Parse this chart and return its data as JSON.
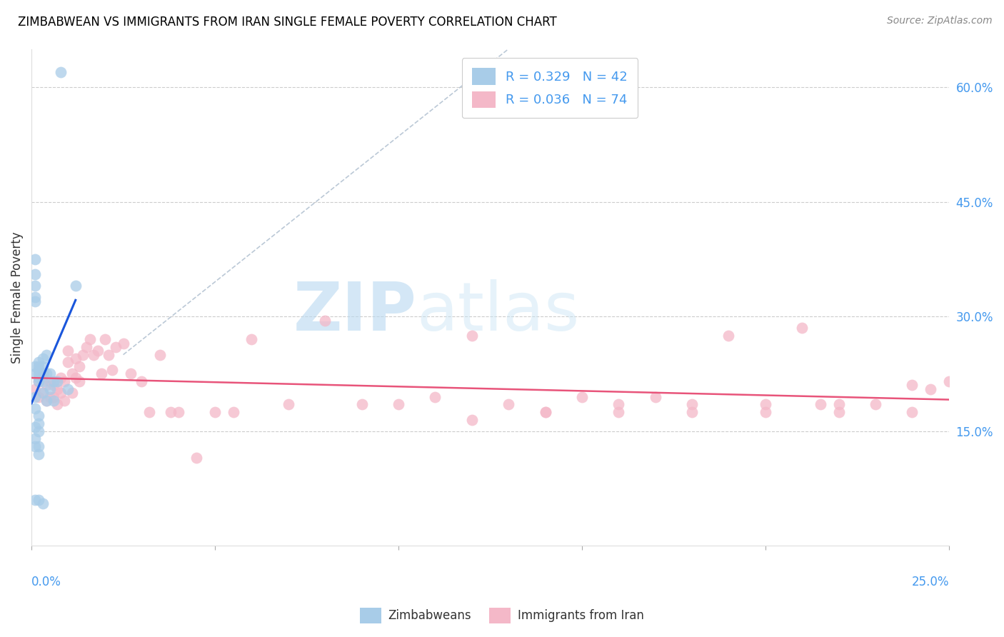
{
  "title": "ZIMBABWEAN VS IMMIGRANTS FROM IRAN SINGLE FEMALE POVERTY CORRELATION CHART",
  "source": "Source: ZipAtlas.com",
  "ylabel": "Single Female Poverty",
  "ylabel_right_ticks": [
    "60.0%",
    "45.0%",
    "30.0%",
    "15.0%"
  ],
  "ylabel_right_values": [
    0.6,
    0.45,
    0.3,
    0.15
  ],
  "xmin": 0.0,
  "xmax": 0.25,
  "ymin": 0.0,
  "ymax": 0.65,
  "color_zim": "#a8cce8",
  "color_iran": "#f4b8c8",
  "color_zim_line": "#1a56db",
  "color_iran_line": "#e8547a",
  "watermark_zip": "ZIP",
  "watermark_atlas": "atlas",
  "zim_scatter_x": [
    0.001,
    0.001,
    0.001,
    0.001,
    0.001,
    0.001,
    0.001,
    0.001,
    0.002,
    0.002,
    0.002,
    0.002,
    0.002,
    0.002,
    0.002,
    0.003,
    0.003,
    0.003,
    0.003,
    0.003,
    0.004,
    0.004,
    0.004,
    0.005,
    0.005,
    0.006,
    0.006,
    0.007,
    0.008,
    0.01,
    0.012,
    0.001,
    0.001,
    0.002,
    0.002,
    0.001,
    0.002,
    0.001,
    0.001,
    0.002,
    0.002,
    0.003
  ],
  "zim_scatter_y": [
    0.375,
    0.355,
    0.34,
    0.325,
    0.32,
    0.235,
    0.225,
    0.06,
    0.24,
    0.235,
    0.23,
    0.225,
    0.22,
    0.215,
    0.13,
    0.245,
    0.235,
    0.225,
    0.215,
    0.2,
    0.25,
    0.225,
    0.19,
    0.225,
    0.205,
    0.215,
    0.19,
    0.215,
    0.62,
    0.205,
    0.34,
    0.195,
    0.18,
    0.17,
    0.16,
    0.155,
    0.15,
    0.14,
    0.13,
    0.12,
    0.06,
    0.055
  ],
  "iran_scatter_x": [
    0.001,
    0.002,
    0.002,
    0.003,
    0.003,
    0.004,
    0.004,
    0.005,
    0.005,
    0.006,
    0.006,
    0.007,
    0.007,
    0.008,
    0.008,
    0.009,
    0.009,
    0.01,
    0.01,
    0.011,
    0.011,
    0.012,
    0.012,
    0.013,
    0.013,
    0.014,
    0.015,
    0.016,
    0.017,
    0.018,
    0.019,
    0.02,
    0.021,
    0.022,
    0.023,
    0.025,
    0.027,
    0.03,
    0.032,
    0.035,
    0.038,
    0.04,
    0.045,
    0.05,
    0.055,
    0.06,
    0.07,
    0.08,
    0.09,
    0.1,
    0.11,
    0.12,
    0.13,
    0.14,
    0.15,
    0.16,
    0.17,
    0.18,
    0.19,
    0.2,
    0.21,
    0.215,
    0.22,
    0.23,
    0.24,
    0.245,
    0.25,
    0.24,
    0.22,
    0.2,
    0.18,
    0.16,
    0.14,
    0.12
  ],
  "iran_scatter_y": [
    0.205,
    0.215,
    0.195,
    0.225,
    0.2,
    0.21,
    0.19,
    0.215,
    0.195,
    0.21,
    0.195,
    0.205,
    0.185,
    0.22,
    0.2,
    0.215,
    0.19,
    0.255,
    0.24,
    0.225,
    0.2,
    0.245,
    0.22,
    0.215,
    0.235,
    0.25,
    0.26,
    0.27,
    0.25,
    0.255,
    0.225,
    0.27,
    0.25,
    0.23,
    0.26,
    0.265,
    0.225,
    0.215,
    0.175,
    0.25,
    0.175,
    0.175,
    0.115,
    0.175,
    0.175,
    0.27,
    0.185,
    0.295,
    0.185,
    0.185,
    0.195,
    0.275,
    0.185,
    0.175,
    0.195,
    0.185,
    0.195,
    0.185,
    0.275,
    0.185,
    0.285,
    0.185,
    0.185,
    0.185,
    0.21,
    0.205,
    0.215,
    0.175,
    0.175,
    0.175,
    0.175,
    0.175,
    0.175,
    0.165
  ]
}
